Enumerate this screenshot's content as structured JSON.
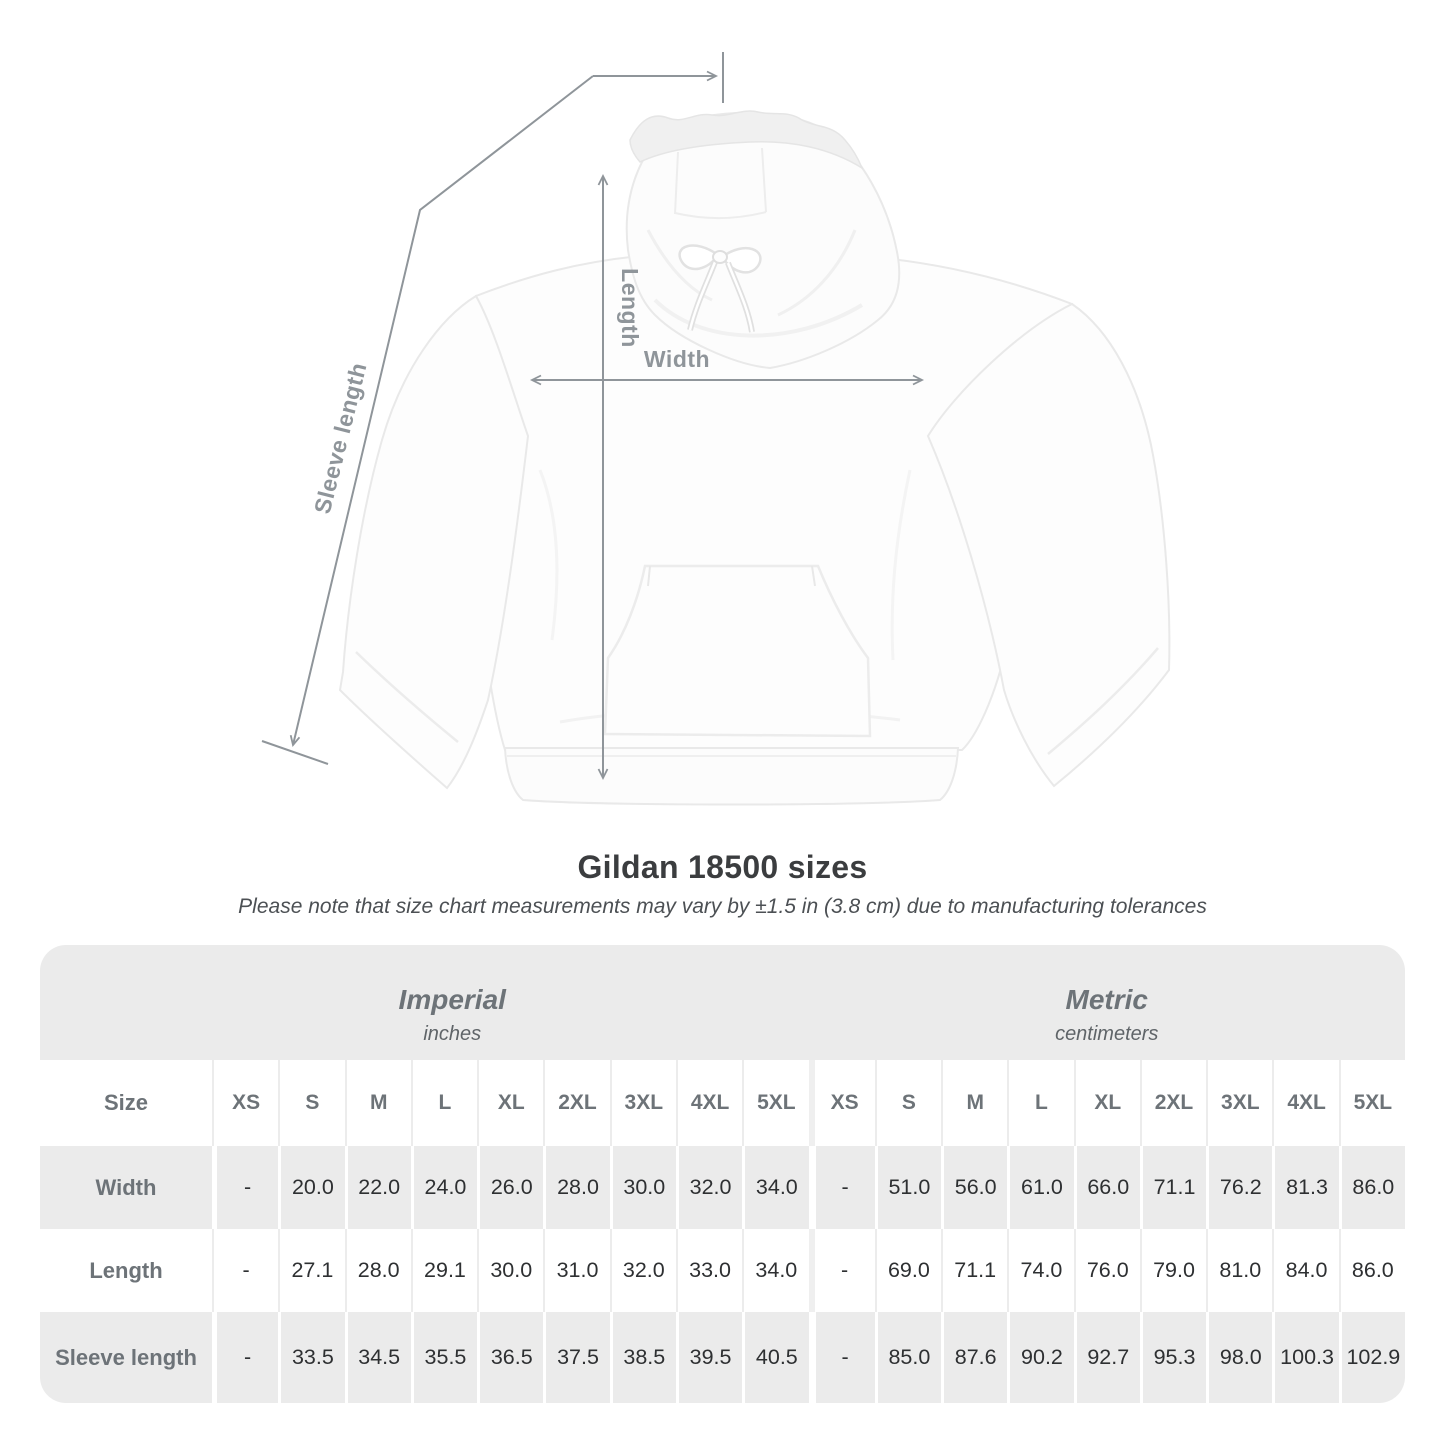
{
  "title": "Gildan 18500 sizes",
  "subtitle": "Please note that size chart measurements may vary by ±1.5 in (3.8 cm) due to manufacturing tolerances",
  "diagram": {
    "labels": {
      "sleeve_length": "Sleeve length",
      "length": "Length",
      "width": "Width"
    }
  },
  "table": {
    "size_header": "Size",
    "groups": [
      {
        "name": "Imperial",
        "unit": "inches"
      },
      {
        "name": "Metric",
        "unit": "centimeters"
      }
    ],
    "sizes": [
      "XS",
      "S",
      "M",
      "L",
      "XL",
      "2XL",
      "3XL",
      "4XL",
      "5XL"
    ],
    "rows": [
      {
        "label": "Width",
        "imperial": [
          "-",
          "20.0",
          "22.0",
          "24.0",
          "26.0",
          "28.0",
          "30.0",
          "32.0",
          "34.0"
        ],
        "metric": [
          "-",
          "51.0",
          "56.0",
          "61.0",
          "66.0",
          "71.1",
          "76.2",
          "81.3",
          "86.0"
        ]
      },
      {
        "label": "Length",
        "imperial": [
          "-",
          "27.1",
          "28.0",
          "29.1",
          "30.0",
          "31.0",
          "32.0",
          "33.0",
          "34.0"
        ],
        "metric": [
          "-",
          "69.0",
          "71.1",
          "74.0",
          "76.0",
          "79.0",
          "81.0",
          "84.0",
          "86.0"
        ]
      },
      {
        "label": "Sleeve length",
        "imperial": [
          "-",
          "33.5",
          "34.5",
          "35.5",
          "36.5",
          "37.5",
          "38.5",
          "39.5",
          "40.5"
        ],
        "metric": [
          "-",
          "85.0",
          "87.6",
          "90.2",
          "92.7",
          "95.3",
          "98.0",
          "100.3",
          "102.9"
        ]
      }
    ]
  },
  "colors": {
    "row_shade": "#ebebeb",
    "heading_text": "#6d7378",
    "value_text": "#2e3032",
    "annotation": "#8f959a",
    "title_text": "#3b3d3f"
  }
}
